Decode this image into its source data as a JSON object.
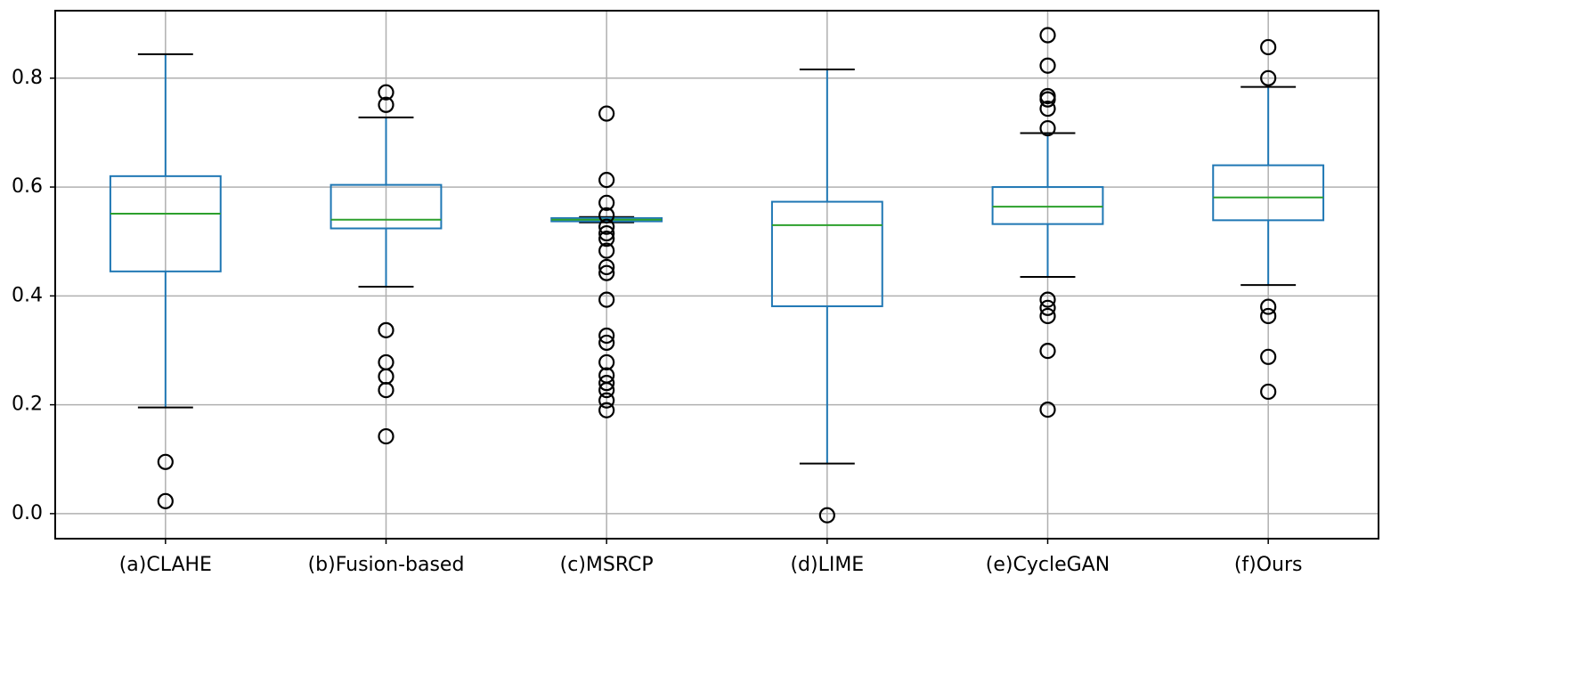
{
  "chart_data": {
    "type": "box",
    "categories": [
      "(a)CLAHE",
      "(b)Fusion-based",
      "(c)MSRCP",
      "(d)LIME",
      "(e)CycleGAN",
      "(f)Ours"
    ],
    "boxes": [
      {
        "whisker_low": 0.195,
        "q1": 0.445,
        "median": 0.551,
        "q3": 0.62,
        "whisker_high": 0.844,
        "outliers": [
          0.095,
          0.023
        ]
      },
      {
        "whisker_low": 0.417,
        "q1": 0.524,
        "median": 0.54,
        "q3": 0.604,
        "whisker_high": 0.728,
        "outliers": [
          0.774,
          0.751,
          0.337,
          0.278,
          0.252,
          0.227,
          0.142
        ]
      },
      {
        "whisker_low": 0.535,
        "q1": 0.537,
        "median": 0.54,
        "q3": 0.543,
        "whisker_high": 0.545,
        "outliers": [
          0.735,
          0.613,
          0.571,
          0.548,
          0.527,
          0.515,
          0.505,
          0.483,
          0.453,
          0.442,
          0.393,
          0.327,
          0.314,
          0.278,
          0.254,
          0.24,
          0.227,
          0.208,
          0.19
        ]
      },
      {
        "whisker_low": 0.092,
        "q1": 0.381,
        "median": 0.53,
        "q3": 0.573,
        "whisker_high": 0.816,
        "outliers": [
          -0.003
        ]
      },
      {
        "whisker_low": 0.435,
        "q1": 0.532,
        "median": 0.564,
        "q3": 0.6,
        "whisker_high": 0.699,
        "outliers": [
          0.879,
          0.823,
          0.767,
          0.761,
          0.744,
          0.708,
          0.393,
          0.378,
          0.363,
          0.299,
          0.191
        ]
      },
      {
        "whisker_low": 0.42,
        "q1": 0.539,
        "median": 0.581,
        "q3": 0.64,
        "whisker_high": 0.784,
        "outliers": [
          0.857,
          0.8,
          0.38,
          0.363,
          0.288,
          0.224
        ]
      }
    ],
    "box_color": "#1f77b4",
    "median_color": "#2ca02c",
    "cap_color": "#000000",
    "outlier_color": "#000000",
    "ylim": [
      -0.046,
      0.924
    ],
    "yticks": [
      {
        "value": 0,
        "label": "0.0"
      },
      0.2,
      0.4,
      0.6,
      0.8
    ],
    "grid": true
  }
}
